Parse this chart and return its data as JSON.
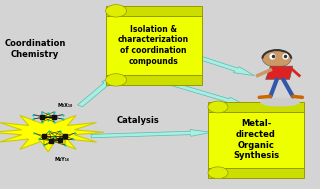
{
  "bg_color": "#d4d4d4",
  "star_color": "#ffff00",
  "star_edge_color": "#cccc00",
  "scroll_fill_color": "#eeff00",
  "scroll_edge_color": "#999900",
  "scroll_dark_color": "#ccdd00",
  "arrow_color": "#aaeedd",
  "arrow_edge_color": "#55bbbb",
  "scroll1_text": "Isolation &\ncharacterization\nof coordination\ncompounds",
  "scroll2_text": "Metal-\ndirected\nOrganic\nSynthesis",
  "coord_label": "Coordination\nChemistry",
  "catalysis_label": "Catalysis",
  "mol_label1": "M₂X₁₀",
  "mol_label2": "M₄Y₁₆",
  "figure_bg": "#d4d4d4"
}
